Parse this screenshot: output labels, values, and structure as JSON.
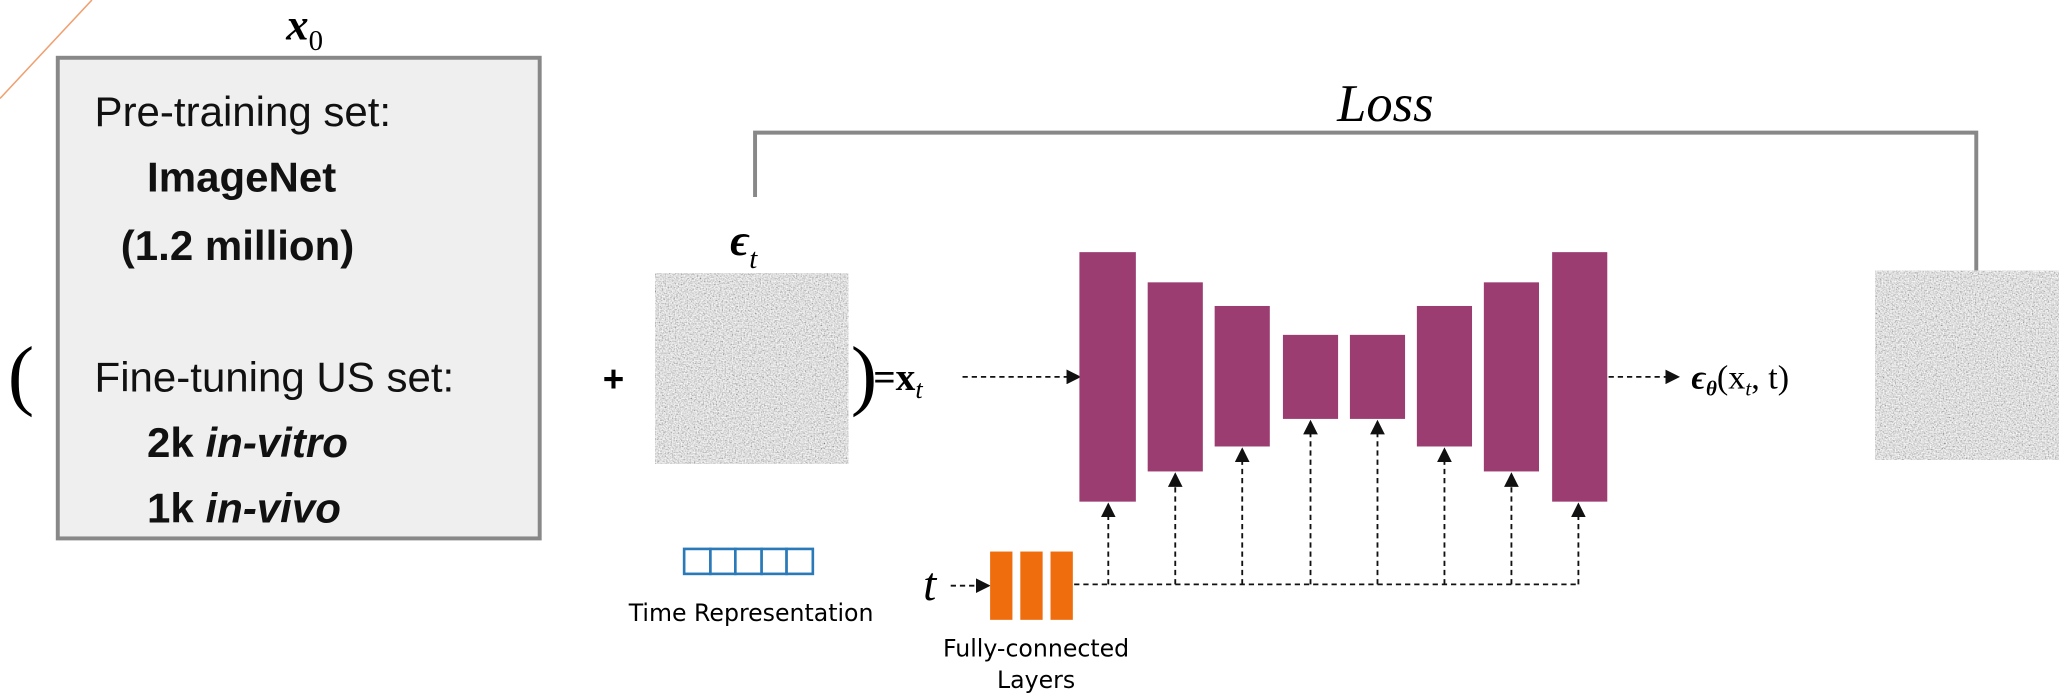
{
  "input": {
    "symbol": "x",
    "subscript": "0"
  },
  "dataset_box": {
    "pretraining_label": "Pre-training set:",
    "pretraining_name": "ImageNet",
    "pretraining_size": "(1.2 million)",
    "finetuning_label": "Fine-tuning US set:",
    "finetuning_items": [
      {
        "count": "2k",
        "kind": "in-vitro"
      },
      {
        "count": "1k",
        "kind": "in-vivo"
      }
    ]
  },
  "open_paren": "(",
  "plus": "+",
  "close_paren": ")",
  "equals": "=",
  "noise": {
    "symbol": "ϵ",
    "subscript": "t"
  },
  "noisy_input": {
    "symbol": "x",
    "subscript": "t"
  },
  "output": {
    "symbol": "ϵ",
    "param": "θ",
    "open": "(x",
    "sub": "t",
    "close": ", t)"
  },
  "loss": "Loss",
  "time_representation": "Time Representation",
  "time_symbol": "t",
  "fc_layers": [
    "Fully-connected",
    "Layers"
  ]
}
